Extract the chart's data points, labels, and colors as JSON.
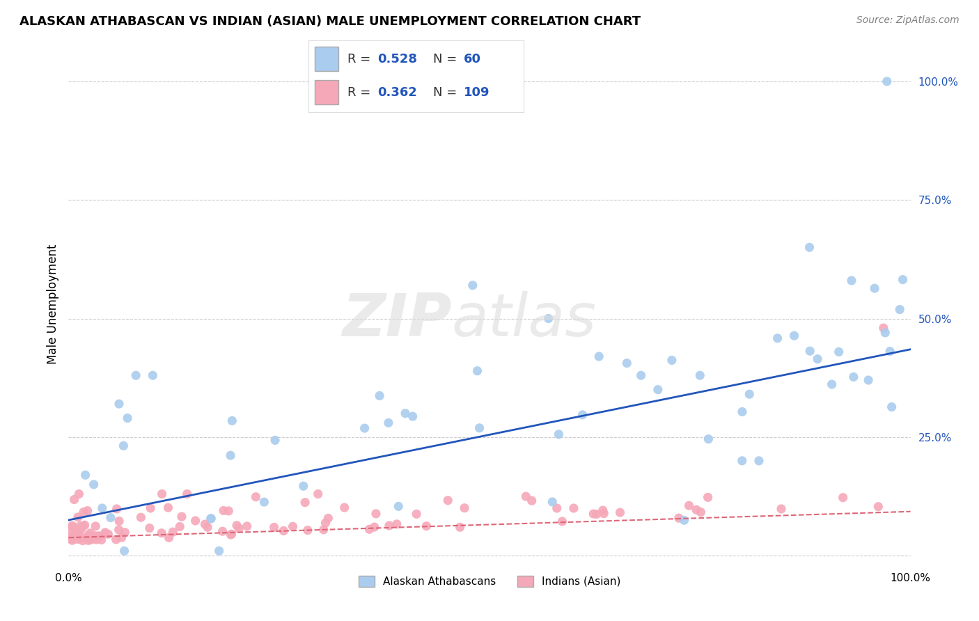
{
  "title": "ALASKAN ATHABASCAN VS INDIAN (ASIAN) MALE UNEMPLOYMENT CORRELATION CHART",
  "source": "Source: ZipAtlas.com",
  "ylabel": "Male Unemployment",
  "color_blue": "#aaccee",
  "color_pink": "#f5a8b8",
  "line_blue": "#2255bb",
  "line_pink": "#dd6677",
  "watermark_zip": "ZIP",
  "watermark_atlas": "atlas",
  "background": "#ffffff",
  "grid_color": "#cccccc",
  "xlim": [
    0.0,
    1.0
  ],
  "ylim": [
    -0.02,
    1.08
  ],
  "y_ticks": [
    0.0,
    0.25,
    0.5,
    0.75,
    1.0
  ],
  "y_tick_labels": [
    "",
    "25.0%",
    "50.0%",
    "75.0%",
    "100.0%"
  ],
  "x_tick_labels": [
    "0.0%",
    "100.0%"
  ],
  "legend1_r": "0.528",
  "legend1_n": "60",
  "legend2_r": "0.362",
  "legend2_n": "109",
  "title_fontsize": 13,
  "source_fontsize": 10,
  "tick_fontsize": 11,
  "legend_fontsize": 13
}
